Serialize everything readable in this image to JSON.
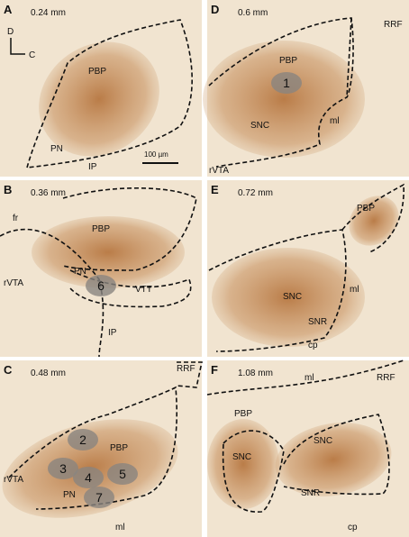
{
  "panels": [
    {
      "letter": "A",
      "depth": "0.24 mm",
      "labels": [
        "PBP",
        "PN",
        "IP"
      ],
      "orientation": [
        "D",
        "C"
      ],
      "scale_bar": "100 µm",
      "sites": []
    },
    {
      "letter": "B",
      "depth": "0.36 mm",
      "labels": [
        "fr",
        "PBP",
        "rVTA",
        "PN",
        "VTT",
        "IP"
      ],
      "sites": [
        "6"
      ]
    },
    {
      "letter": "C",
      "depth": "0.48 mm",
      "labels": [
        "RRF",
        "PBP",
        "rVTA",
        "PN",
        "ml"
      ],
      "sites": [
        "2",
        "3",
        "4",
        "5",
        "7"
      ]
    },
    {
      "letter": "D",
      "depth": "0.6 mm",
      "labels": [
        "RRF",
        "PBP",
        "ml",
        "SNC",
        "rVTA"
      ],
      "sites": [
        "1"
      ]
    },
    {
      "letter": "E",
      "depth": "0.72 mm",
      "labels": [
        "PBP",
        "ml",
        "SNC",
        "SNR",
        "cp"
      ],
      "sites": []
    },
    {
      "letter": "F",
      "depth": "1.08 mm",
      "labels": [
        "ml",
        "RRF",
        "PBP",
        "SNC",
        "SNC",
        "SNR",
        "cp"
      ],
      "sites": []
    }
  ]
}
